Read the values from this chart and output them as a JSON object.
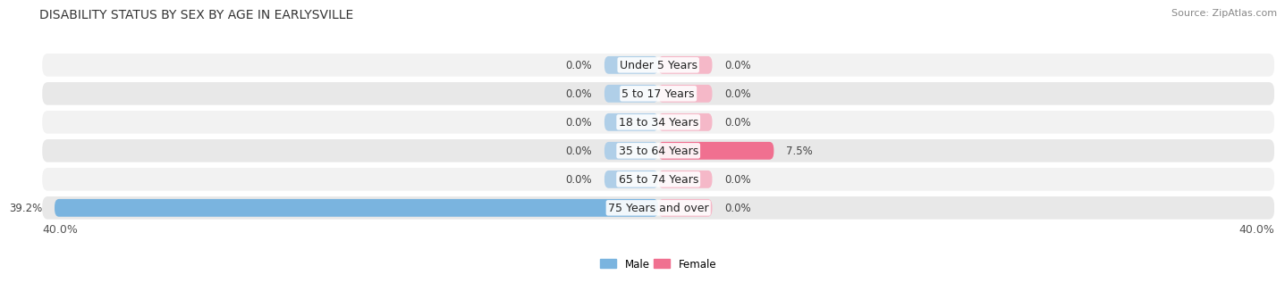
{
  "title": "DISABILITY STATUS BY SEX BY AGE IN EARLYSVILLE",
  "source": "Source: ZipAtlas.com",
  "categories": [
    "Under 5 Years",
    "5 to 17 Years",
    "18 to 34 Years",
    "35 to 64 Years",
    "65 to 74 Years",
    "75 Years and over"
  ],
  "male_values": [
    0.0,
    0.0,
    0.0,
    0.0,
    0.0,
    39.2
  ],
  "female_values": [
    0.0,
    0.0,
    0.0,
    7.5,
    0.0,
    0.0
  ],
  "male_color": "#7ab4df",
  "female_color": "#f07090",
  "male_color_light": "#b0cfe8",
  "female_color_light": "#f5b8c8",
  "row_bg_even": "#f2f2f2",
  "row_bg_odd": "#e8e8e8",
  "xlim": 40.0,
  "stub_size": 3.5,
  "legend_male": "Male",
  "legend_female": "Female",
  "title_fontsize": 10,
  "source_fontsize": 8,
  "label_fontsize": 8.5,
  "category_fontsize": 9,
  "axis_label_fontsize": 9
}
